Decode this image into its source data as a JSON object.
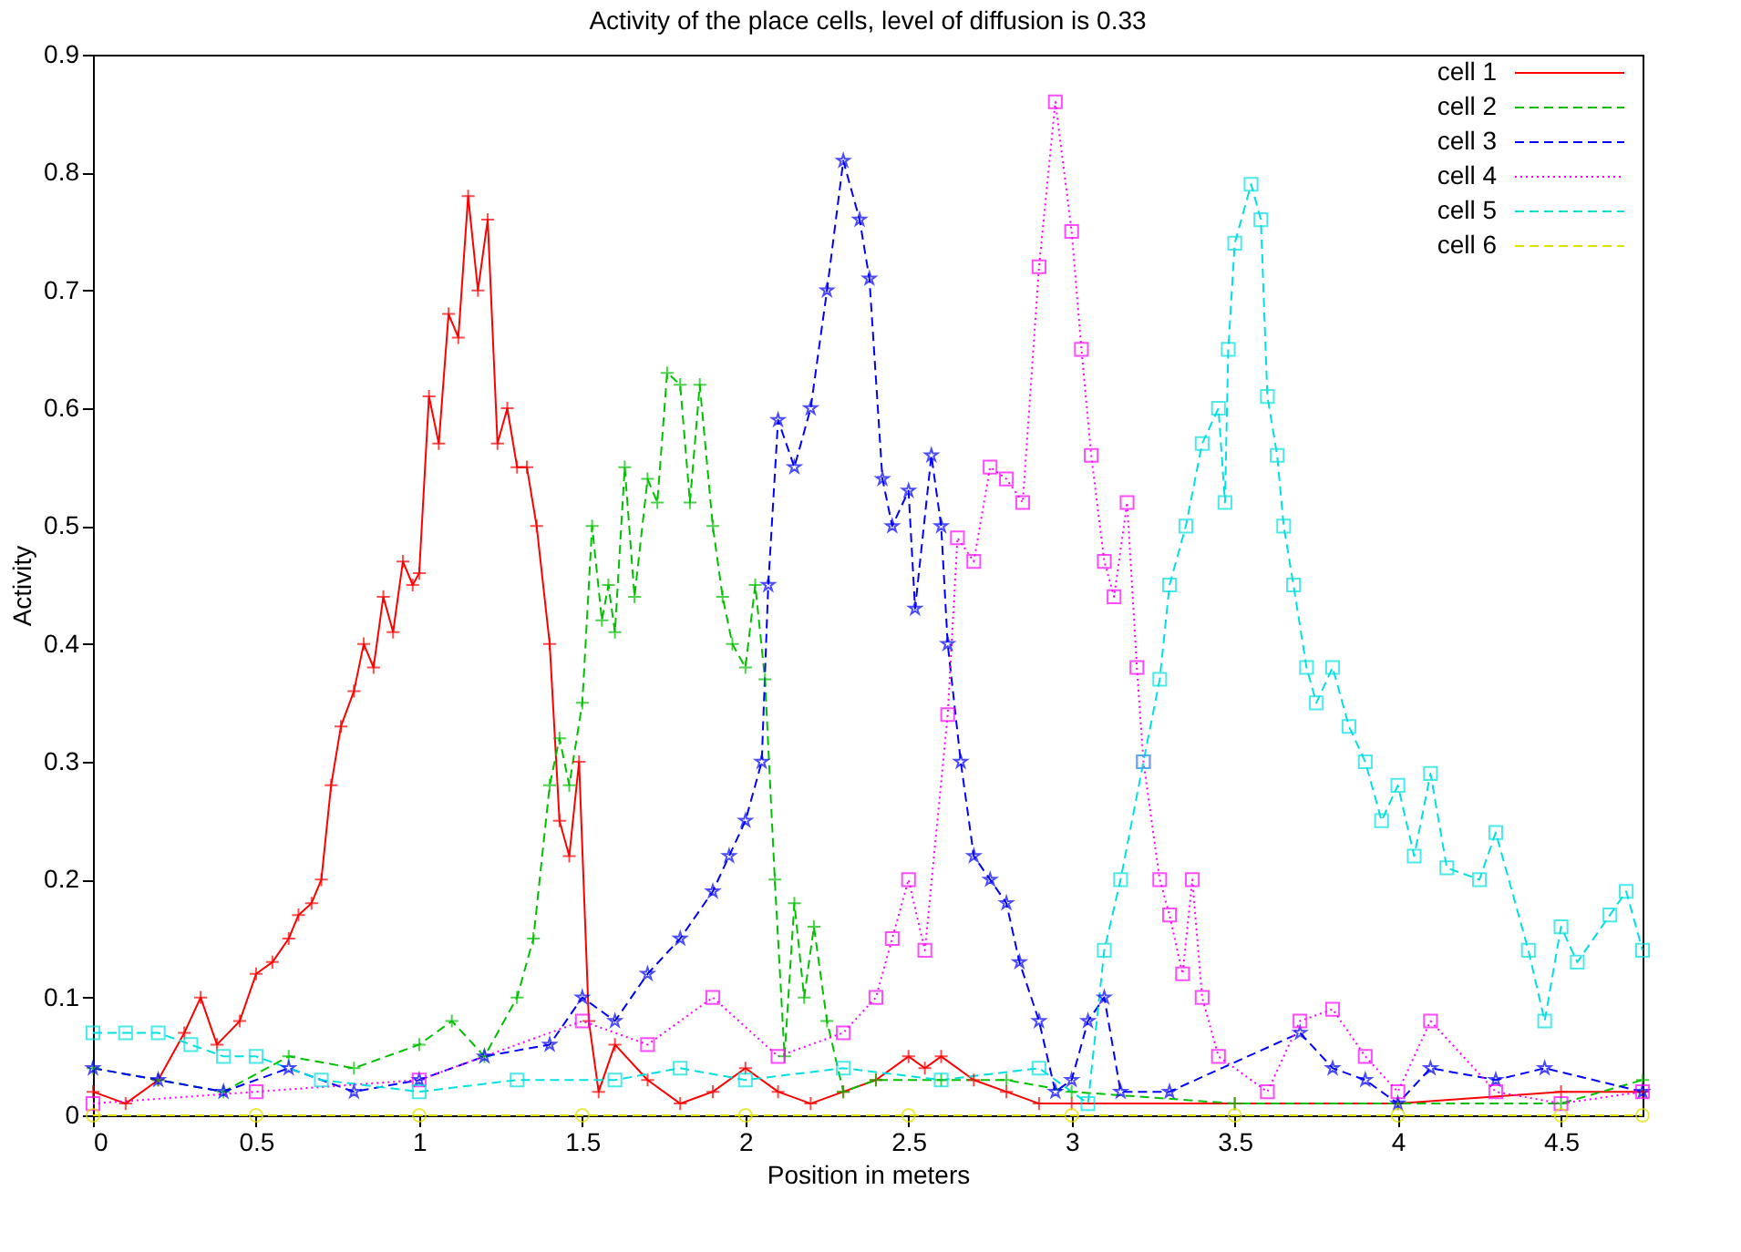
{
  "chart_data": {
    "type": "line",
    "title": "Activity of the place cells, level of diffusion is 0.33",
    "xlabel": "Position in meters",
    "ylabel": "Activity",
    "xlim": [
      0,
      4.75
    ],
    "ylim": [
      0,
      0.9
    ],
    "xticks": [
      0,
      0.5,
      1,
      1.5,
      2,
      2.5,
      3,
      3.5,
      4,
      4.5
    ],
    "yticks": [
      0,
      0.1,
      0.2,
      0.3,
      0.4,
      0.5,
      0.6,
      0.7,
      0.8,
      0.9
    ],
    "grid": false,
    "legend": "top right",
    "series": [
      {
        "name": "cell 1",
        "color": "#ff0000",
        "marker": "cross",
        "line_style": "solid",
        "x": [
          0,
          0.1,
          0.2,
          0.28,
          0.33,
          0.38,
          0.45,
          0.5,
          0.55,
          0.6,
          0.63,
          0.67,
          0.7,
          0.73,
          0.76,
          0.8,
          0.83,
          0.86,
          0.89,
          0.92,
          0.95,
          0.98,
          1.0,
          1.03,
          1.06,
          1.09,
          1.12,
          1.15,
          1.18,
          1.21,
          1.24,
          1.27,
          1.3,
          1.33,
          1.36,
          1.4,
          1.43,
          1.46,
          1.49,
          1.52,
          1.55,
          1.6,
          1.7,
          1.8,
          1.9,
          2.0,
          2.1,
          2.2,
          2.3,
          2.4,
          2.5,
          2.55,
          2.6,
          2.7,
          2.8,
          2.9,
          3.0,
          3.5,
          4.0,
          4.5,
          4.75
        ],
        "values": [
          0.02,
          0.01,
          0.03,
          0.07,
          0.1,
          0.06,
          0.08,
          0.12,
          0.13,
          0.15,
          0.17,
          0.18,
          0.2,
          0.28,
          0.33,
          0.36,
          0.4,
          0.38,
          0.44,
          0.41,
          0.47,
          0.45,
          0.46,
          0.61,
          0.57,
          0.68,
          0.66,
          0.78,
          0.7,
          0.76,
          0.57,
          0.6,
          0.55,
          0.55,
          0.5,
          0.4,
          0.25,
          0.22,
          0.3,
          0.08,
          0.02,
          0.06,
          0.03,
          0.01,
          0.02,
          0.04,
          0.02,
          0.01,
          0.02,
          0.03,
          0.05,
          0.04,
          0.05,
          0.03,
          0.02,
          0.01,
          0.01,
          0.01,
          0.01,
          0.02,
          0.02
        ]
      },
      {
        "name": "cell 2",
        "color": "#00c000",
        "marker": "cross",
        "line_style": "dashed",
        "x": [
          0,
          0.2,
          0.4,
          0.6,
          0.8,
          1.0,
          1.1,
          1.2,
          1.3,
          1.35,
          1.4,
          1.43,
          1.46,
          1.5,
          1.53,
          1.56,
          1.58,
          1.6,
          1.63,
          1.66,
          1.7,
          1.73,
          1.76,
          1.8,
          1.83,
          1.86,
          1.9,
          1.93,
          1.96,
          2.0,
          2.03,
          2.06,
          2.09,
          2.12,
          2.15,
          2.18,
          2.21,
          2.25,
          2.3,
          2.4,
          2.6,
          2.8,
          3.0,
          3.5,
          4.0,
          4.5,
          4.75
        ],
        "values": [
          0.04,
          0.03,
          0.02,
          0.05,
          0.04,
          0.06,
          0.08,
          0.05,
          0.1,
          0.15,
          0.28,
          0.32,
          0.28,
          0.35,
          0.5,
          0.42,
          0.45,
          0.41,
          0.55,
          0.44,
          0.54,
          0.52,
          0.63,
          0.62,
          0.52,
          0.62,
          0.5,
          0.44,
          0.4,
          0.38,
          0.45,
          0.37,
          0.2,
          0.05,
          0.18,
          0.1,
          0.16,
          0.08,
          0.02,
          0.03,
          0.03,
          0.03,
          0.02,
          0.01,
          0.01,
          0.01,
          0.03
        ]
      },
      {
        "name": "cell 3",
        "color": "#0000ff",
        "marker": "star",
        "line_style": "dashed",
        "x": [
          0,
          0.2,
          0.4,
          0.6,
          0.8,
          1.0,
          1.2,
          1.4,
          1.5,
          1.6,
          1.7,
          1.8,
          1.9,
          1.95,
          2.0,
          2.05,
          2.07,
          2.1,
          2.15,
          2.2,
          2.25,
          2.3,
          2.35,
          2.38,
          2.42,
          2.45,
          2.5,
          2.52,
          2.57,
          2.6,
          2.62,
          2.66,
          2.7,
          2.75,
          2.8,
          2.84,
          2.9,
          2.95,
          3.0,
          3.05,
          3.1,
          3.15,
          3.3,
          3.7,
          3.8,
          3.9,
          4.0,
          4.1,
          4.3,
          4.45,
          4.75
        ],
        "values": [
          0.04,
          0.03,
          0.02,
          0.04,
          0.02,
          0.03,
          0.05,
          0.06,
          0.1,
          0.08,
          0.12,
          0.15,
          0.19,
          0.22,
          0.25,
          0.3,
          0.45,
          0.59,
          0.55,
          0.6,
          0.7,
          0.81,
          0.76,
          0.71,
          0.54,
          0.5,
          0.53,
          0.43,
          0.56,
          0.5,
          0.4,
          0.3,
          0.22,
          0.2,
          0.18,
          0.13,
          0.08,
          0.02,
          0.03,
          0.08,
          0.1,
          0.02,
          0.02,
          0.07,
          0.04,
          0.03,
          0.01,
          0.04,
          0.03,
          0.04,
          0.02
        ]
      },
      {
        "name": "cell 4",
        "color": "#ff00ff",
        "marker": "square",
        "line_style": "dotted",
        "x": [
          0,
          0.5,
          1.0,
          1.5,
          1.7,
          1.9,
          2.1,
          2.3,
          2.4,
          2.45,
          2.5,
          2.55,
          2.62,
          2.65,
          2.7,
          2.75,
          2.8,
          2.85,
          2.9,
          2.95,
          3.0,
          3.03,
          3.06,
          3.1,
          3.13,
          3.17,
          3.2,
          3.22,
          3.27,
          3.3,
          3.34,
          3.37,
          3.4,
          3.45,
          3.6,
          3.7,
          3.8,
          3.9,
          4.0,
          4.1,
          4.3,
          4.5,
          4.75
        ],
        "values": [
          0.01,
          0.02,
          0.03,
          0.08,
          0.06,
          0.1,
          0.05,
          0.07,
          0.1,
          0.15,
          0.2,
          0.14,
          0.34,
          0.49,
          0.47,
          0.55,
          0.54,
          0.52,
          0.72,
          0.86,
          0.75,
          0.65,
          0.56,
          0.47,
          0.44,
          0.52,
          0.38,
          0.3,
          0.2,
          0.17,
          0.12,
          0.2,
          0.1,
          0.05,
          0.02,
          0.08,
          0.09,
          0.05,
          0.02,
          0.08,
          0.02,
          0.01,
          0.02
        ]
      },
      {
        "name": "cell 5",
        "color": "#00e0e0",
        "marker": "square",
        "line_style": "dashed",
        "x": [
          0,
          0.1,
          0.2,
          0.3,
          0.4,
          0.5,
          0.7,
          1.0,
          1.3,
          1.6,
          1.8,
          2.0,
          2.3,
          2.6,
          2.9,
          3.05,
          3.1,
          3.15,
          3.22,
          3.27,
          3.3,
          3.35,
          3.4,
          3.45,
          3.47,
          3.48,
          3.5,
          3.55,
          3.58,
          3.6,
          3.63,
          3.65,
          3.68,
          3.72,
          3.75,
          3.8,
          3.85,
          3.9,
          3.95,
          4.0,
          4.05,
          4.1,
          4.15,
          4.25,
          4.3,
          4.4,
          4.45,
          4.5,
          4.55,
          4.65,
          4.7,
          4.75
        ],
        "values": [
          0.07,
          0.07,
          0.07,
          0.06,
          0.05,
          0.05,
          0.03,
          0.02,
          0.03,
          0.03,
          0.04,
          0.03,
          0.04,
          0.03,
          0.04,
          0.01,
          0.14,
          0.2,
          0.3,
          0.37,
          0.45,
          0.5,
          0.57,
          0.6,
          0.52,
          0.65,
          0.74,
          0.79,
          0.76,
          0.61,
          0.56,
          0.5,
          0.45,
          0.38,
          0.35,
          0.38,
          0.33,
          0.3,
          0.25,
          0.28,
          0.22,
          0.29,
          0.21,
          0.2,
          0.24,
          0.14,
          0.08,
          0.16,
          0.13,
          0.17,
          0.19,
          0.14
        ]
      },
      {
        "name": "cell 6",
        "color": "#e0e000",
        "marker": "circle",
        "line_style": "dashed",
        "x": [
          0,
          0.5,
          1.0,
          1.5,
          2.0,
          2.5,
          3.0,
          3.5,
          4.0,
          4.5,
          4.75
        ],
        "values": [
          0,
          0,
          0,
          0,
          0,
          0,
          0,
          0,
          0,
          0,
          0
        ]
      }
    ]
  }
}
